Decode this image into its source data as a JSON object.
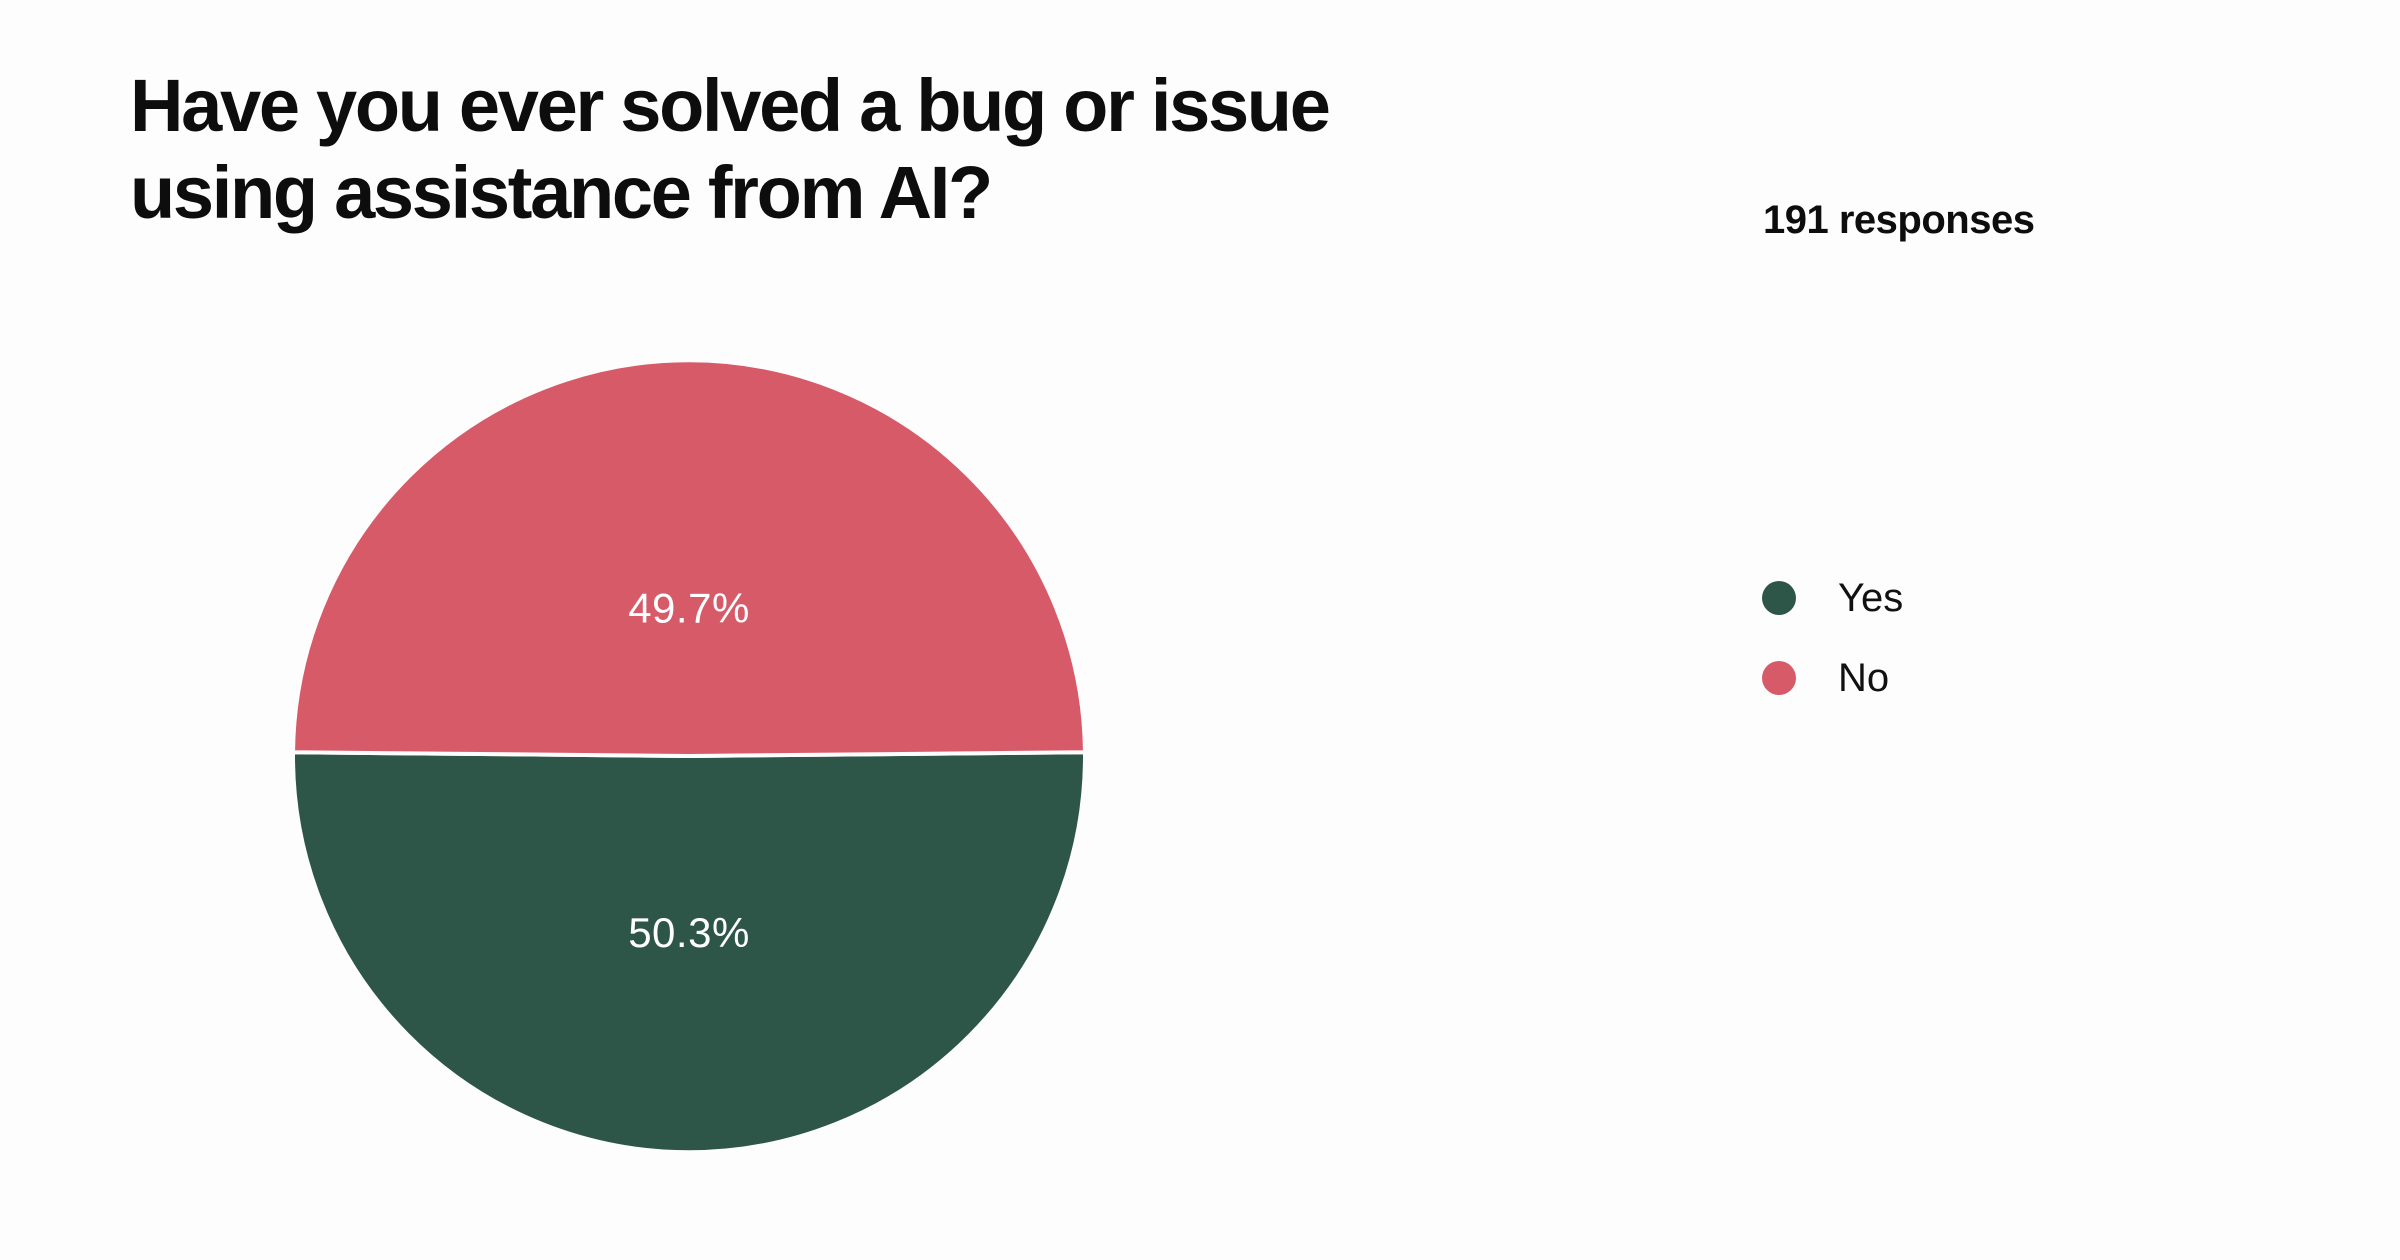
{
  "page": {
    "background": "#FDFDFD",
    "text_color": "#0D0D0D"
  },
  "header": {
    "title": "Have you ever solved a bug or issue\nusing assistance from AI?",
    "responses_label": "191 responses",
    "responses_count": 191
  },
  "chart_data": {
    "type": "pie",
    "title": "Have you ever solved a bug or issue using assistance from AI?",
    "subtitle": "191 responses",
    "categories": [
      "Yes",
      "No"
    ],
    "values": [
      50.3,
      49.7
    ],
    "unit": "percent",
    "slice_labels": [
      "50.3%",
      "49.7%"
    ],
    "colors": [
      "#2E5648",
      "#D75A68"
    ],
    "slice_label_color": "#FFFFFF",
    "divider_color": "#FDFDFD",
    "legend_position": "right",
    "layout_note": "Yes slice fills bottom half, No slice fills top half, near-horizontal divider"
  }
}
